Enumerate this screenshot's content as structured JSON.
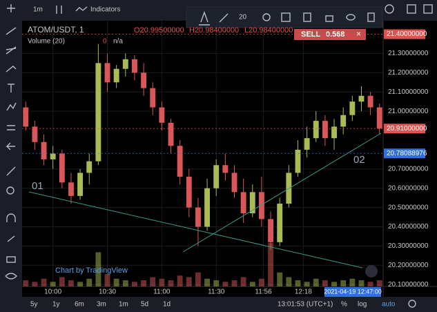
{
  "toolbar": {
    "interval": "1m",
    "indicators": "Indicators",
    "font_size": "20"
  },
  "legend": {
    "symbol": "ATOM/USDT, 1",
    "open": "O20.99500000",
    "high": "H20.98400000",
    "low": "L20.98400000",
    "volume": "Volume (20)",
    "volume_value": "0",
    "volume_ma": "n/a"
  },
  "order": {
    "side": "SELL",
    "quantity": "0.568",
    "close": "×"
  },
  "watermark": "Chart by TradingView",
  "annotations": [
    "01",
    "02"
  ],
  "bottom_bar": {
    "ranges": [
      "5y",
      "1y",
      "6m",
      "3m",
      "1m",
      "5d",
      "1d"
    ],
    "clock": "13:01:53 (UTC+1)",
    "percent": "%",
    "log": "log",
    "auto": "auto"
  },
  "crosshair_time": "2021-04-19 12:47:00",
  "chart_data": {
    "type": "candlestick",
    "up_color": "#a9bb55",
    "down_color": "#d9575a",
    "x": [
      585,
      590,
      595,
      600,
      605,
      610,
      615,
      620,
      625,
      630,
      635,
      640,
      645,
      650,
      655,
      660,
      665,
      670,
      675,
      680,
      685,
      690,
      695,
      700,
      705,
      710,
      715,
      720,
      725,
      730,
      735,
      740,
      745,
      750,
      755,
      760,
      765,
      770,
      775,
      780
    ],
    "open": [
      21.02,
      20.92,
      20.84,
      20.75,
      20.78,
      20.63,
      20.56,
      20.68,
      20.74,
      21.25,
      21.15,
      21.22,
      21.27,
      21.2,
      21.12,
      21.02,
      20.94,
      20.82,
      20.66,
      20.5,
      20.4,
      20.6,
      20.72,
      20.68,
      20.58,
      20.47,
      20.58,
      20.44,
      20.32,
      20.52,
      20.68,
      20.8,
      20.86,
      20.95,
      20.86,
      20.92,
      20.98,
      21.05,
      21.08,
      21.02
    ],
    "high": [
      21.05,
      20.95,
      20.88,
      20.82,
      20.8,
      20.68,
      20.7,
      20.78,
      21.35,
      21.3,
      21.24,
      21.3,
      21.29,
      21.25,
      21.15,
      21.05,
      20.96,
      20.85,
      20.7,
      20.55,
      20.65,
      20.75,
      20.78,
      20.72,
      20.65,
      20.62,
      20.66,
      20.48,
      20.55,
      20.72,
      20.85,
      20.92,
      21.0,
      20.98,
      20.96,
      21.02,
      21.08,
      21.13,
      21.1,
      21.04
    ],
    "low": [
      20.9,
      20.8,
      20.72,
      20.7,
      20.6,
      20.52,
      20.54,
      20.62,
      20.72,
      21.1,
      21.12,
      21.18,
      21.16,
      21.08,
      20.98,
      20.9,
      20.78,
      20.62,
      20.45,
      20.3,
      20.38,
      20.56,
      20.64,
      20.55,
      20.42,
      20.45,
      20.4,
      20.28,
      20.3,
      20.5,
      20.66,
      20.76,
      20.84,
      20.82,
      20.8,
      20.88,
      20.95,
      21.0,
      20.98,
      20.88
    ],
    "close": [
      20.92,
      20.84,
      20.75,
      20.78,
      20.63,
      20.56,
      20.68,
      20.74,
      21.25,
      21.15,
      21.22,
      21.27,
      21.2,
      21.12,
      21.02,
      20.94,
      20.82,
      20.66,
      20.5,
      20.4,
      20.6,
      20.72,
      20.68,
      20.58,
      20.47,
      20.58,
      20.44,
      20.32,
      20.52,
      20.68,
      20.8,
      20.86,
      20.95,
      20.86,
      20.92,
      20.98,
      21.05,
      21.08,
      21.02,
      20.91
    ],
    "volume": [
      4,
      3,
      5,
      3,
      6,
      4,
      3,
      5,
      22,
      8,
      5,
      4,
      3,
      4,
      6,
      5,
      4,
      7,
      6,
      9,
      5,
      4,
      3,
      4,
      6,
      3,
      5,
      28,
      9,
      6,
      4,
      3,
      5,
      4,
      3,
      4,
      5,
      4,
      3,
      4
    ],
    "volume_ylim": [
      0,
      40
    ],
    "xlim": [
      583,
      782
    ],
    "xticks": [
      {
        "value": 600,
        "label": "10:00"
      },
      {
        "value": 630,
        "label": "10:30"
      },
      {
        "value": 660,
        "label": "11:00"
      },
      {
        "value": 690,
        "label": "11:30"
      },
      {
        "value": 716,
        "label": "11:56"
      },
      {
        "value": 738,
        "label": "12:18"
      }
    ],
    "ylim": [
      20.09,
      21.47
    ],
    "yticks": [
      {
        "value": 21.3,
        "label": "21.30000000"
      },
      {
        "value": 21.2,
        "label": "21.20000000"
      },
      {
        "value": 21.1,
        "label": "21.10000000"
      },
      {
        "value": 21.0,
        "label": "21.00000000"
      },
      {
        "value": 20.7,
        "label": "20.70000000"
      },
      {
        "value": 20.6,
        "label": "20.60000000"
      },
      {
        "value": 20.5,
        "label": "20.50000000"
      },
      {
        "value": 20.4,
        "label": "20.40000000"
      },
      {
        "value": 20.3,
        "label": "20.30000000"
      },
      {
        "value": 20.2,
        "label": "20.20000000"
      },
      {
        "value": 20.1,
        "label": "20.10000000"
      }
    ],
    "price_labels": [
      {
        "value": 21.4,
        "label": "21.40000000",
        "color": "#e0524f"
      },
      {
        "value": 20.91,
        "label": "20.91000000",
        "color": "#e0524f"
      },
      {
        "value": 20.78088976,
        "label": "20.78088976",
        "color": "#2f6fe0"
      }
    ],
    "grid": true
  }
}
